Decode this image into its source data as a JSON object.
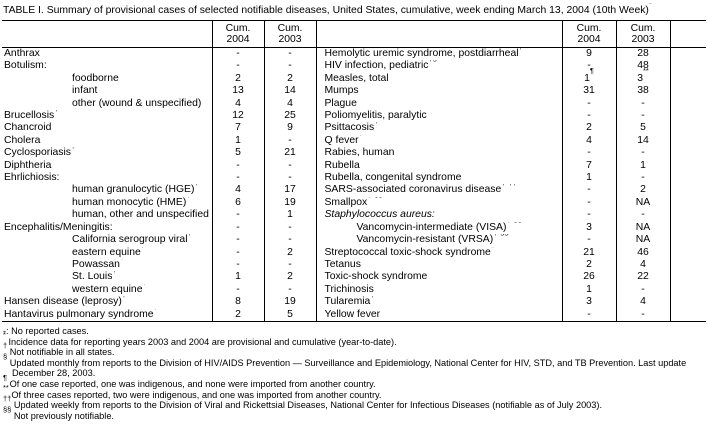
{
  "title": "TABLE I. Summary of provisional cases of selected notifiable diseases, United States, cumulative, week ending March 13, 2004 (10th Week)*",
  "table": {
    "columns": {
      "cum": "Cum.",
      "y2004": "2004",
      "y2003": "2003"
    },
    "left_rows": [
      {
        "label": "Anthrax",
        "indent": 0,
        "c2004": "-",
        "c2003": "-"
      },
      {
        "label": "Botulism:",
        "indent": 0,
        "c2004": "-",
        "c2003": "-"
      },
      {
        "label": "foodborne",
        "indent": 1,
        "c2004": "2",
        "c2003": "2"
      },
      {
        "label": "infant",
        "indent": 1,
        "c2004": "13",
        "c2003": "14"
      },
      {
        "label": "other (wound & unspecified)",
        "indent": 1,
        "c2004": "4",
        "c2003": "4"
      },
      {
        "label": "Brucellosis†",
        "indent": 0,
        "c2004": "12",
        "c2003": "25"
      },
      {
        "label": "Chancroid",
        "indent": 0,
        "c2004": "7",
        "c2003": "9"
      },
      {
        "label": "Cholera",
        "indent": 0,
        "c2004": "1",
        "c2003": "-"
      },
      {
        "label": "Cyclosporiasis†",
        "indent": 0,
        "c2004": "5",
        "c2003": "21"
      },
      {
        "label": "Diphtheria",
        "indent": 0,
        "c2004": "-",
        "c2003": "-"
      },
      {
        "label": "Ehrlichiosis:",
        "indent": 0,
        "c2004": "-",
        "c2003": "-"
      },
      {
        "label": "human granulocytic (HGE)†",
        "indent": 1,
        "c2004": "4",
        "c2003": "17"
      },
      {
        "label": "human monocytic (HME)†",
        "indent": 1,
        "c2004": "6",
        "c2003": "19"
      },
      {
        "label": "human, other and unspecified",
        "indent": 1,
        "c2004": "-",
        "c2003": "1"
      },
      {
        "label": "Encephalitis/Meningitis:",
        "indent": 0,
        "c2004": "-",
        "c2003": "-"
      },
      {
        "label": "California serogroup viral†",
        "indent": 1,
        "c2004": "-",
        "c2003": "-"
      },
      {
        "label": "eastern equine†",
        "indent": 1,
        "c2004": "-",
        "c2003": "2"
      },
      {
        "label": "Powassan†",
        "indent": 1,
        "c2004": "-",
        "c2003": "-"
      },
      {
        "label": "St. Louis†",
        "indent": 1,
        "c2004": "1",
        "c2003": "2"
      },
      {
        "label": "western equine†",
        "indent": 1,
        "c2004": "-",
        "c2003": "-"
      },
      {
        "label": "Hansen disease (leprosy)†",
        "indent": 0,
        "c2004": "8",
        "c2003": "19"
      },
      {
        "label": "Hantavirus pulmonary syndrome†",
        "indent": 0,
        "c2004": "2",
        "c2003": "5"
      }
    ],
    "right_rows": [
      {
        "label": "Hemolytic uremic syndrome, postdiarrheal†",
        "indent": 0,
        "c2004": "9",
        "c2003": "28"
      },
      {
        "label": "HIV infection, pediatric†§",
        "indent": 0,
        "c2004": "-",
        "c2003": "48"
      },
      {
        "label": "Measles, total",
        "indent": 0,
        "c2004": "1¶",
        "c2003": "3**"
      },
      {
        "label": "Mumps",
        "indent": 0,
        "c2004": "31",
        "c2003": "38"
      },
      {
        "label": "Plague",
        "indent": 0,
        "c2004": "-",
        "c2003": "-"
      },
      {
        "label": "Poliomyelitis, paralytic",
        "indent": 0,
        "c2004": "-",
        "c2003": "-"
      },
      {
        "label": "Psittacosis†",
        "indent": 0,
        "c2004": "2",
        "c2003": "5"
      },
      {
        "label": "Q fever†",
        "indent": 0,
        "c2004": "4",
        "c2003": "14"
      },
      {
        "label": "Rabies, human",
        "indent": 0,
        "c2004": "-",
        "c2003": "-"
      },
      {
        "label": "Rubella",
        "indent": 0,
        "c2004": "7",
        "c2003": "1"
      },
      {
        "label": "Rubella, congenital syndrome",
        "indent": 0,
        "c2004": "1",
        "c2003": "-"
      },
      {
        "label": "SARS-associated coronavirus disease† ††",
        "indent": 0,
        "c2004": "-",
        "c2003": "2"
      },
      {
        "label": "Smallpox† §§",
        "indent": 0,
        "c2004": "-",
        "c2003": "NA"
      },
      {
        "label": "Staphylococcus aureus:",
        "indent": 0,
        "italic": true,
        "c2004": "-",
        "c2003": "-"
      },
      {
        "label": "Vancomycin-intermediate (VISA)† §§",
        "indent": 1,
        "c2004": "3",
        "c2003": "NA"
      },
      {
        "label": "Vancomycin-resistant (VRSA)† §§",
        "indent": 1,
        "c2004": "-",
        "c2003": "NA"
      },
      {
        "label": "Streptococcal toxic-shock syndrome†",
        "indent": 0,
        "c2004": "21",
        "c2003": "46"
      },
      {
        "label": "Tetanus",
        "indent": 0,
        "c2004": "2",
        "c2003": "4"
      },
      {
        "label": "Toxic-shock syndrome",
        "indent": 0,
        "c2004": "26",
        "c2003": "22"
      },
      {
        "label": "Trichinosis",
        "indent": 0,
        "c2004": "1",
        "c2003": "-"
      },
      {
        "label": "Tularemia†",
        "indent": 0,
        "c2004": "3",
        "c2003": "4"
      },
      {
        "label": "Yellow fever",
        "indent": 0,
        "c2004": "-",
        "c2003": "-"
      }
    ]
  },
  "footnotes": [
    {
      "symbol": "-:",
      "sup": false,
      "text": "No reported cases."
    },
    {
      "symbol": "*",
      "sup": true,
      "text": "Incidence data for reporting years 2003 and 2004 are provisional and cumulative (year-to-date)."
    },
    {
      "symbol": "†",
      "sup": true,
      "text": "Not notifiable in all states."
    },
    {
      "symbol": "§",
      "sup": true,
      "text": "Updated monthly from reports to the Division of HIV/AIDS Prevention — Surveillance and Epidemiology, National Center for HIV, STD, and TB Prevention. Last update December 28, 2003."
    },
    {
      "symbol": "¶",
      "sup": true,
      "text": "Of one case reported, one was indigenous, and none were imported from another country."
    },
    {
      "symbol": "**",
      "sup": true,
      "text": "Of three cases reported, two were indigenous, and one was imported from another country."
    },
    {
      "symbol": "††",
      "sup": true,
      "text": "Updated weekly from reports to the Division of Viral and Rickettsial Diseases, National Center for Infectious Diseases (notifiable as of July 2003)."
    },
    {
      "symbol": "§§",
      "sup": true,
      "text": "Not previously notifiable."
    }
  ]
}
